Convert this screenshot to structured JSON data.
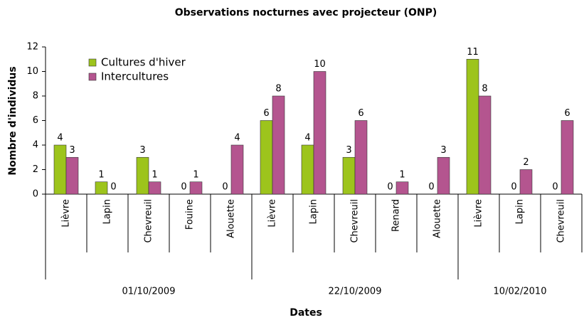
{
  "chart_data": {
    "type": "bar",
    "title": "Observations nocturnes avec projecteur (ONP)",
    "x_label": "Dates",
    "y_label": "Nombre d'individus",
    "categories": [
      "Lièvre",
      "Lapin",
      "Chevreuil",
      "Fouine",
      "Alouette",
      "Lièvre",
      "Lapin",
      "Chevreuil",
      "Renard",
      "Alouette",
      "Lièvre",
      "Lapin",
      "Chevreuil"
    ],
    "groups": [
      {
        "name": "01/10/2009",
        "span": 5
      },
      {
        "name": "22/10/2009",
        "span": 5
      },
      {
        "name": "10/02/2010",
        "span": 3
      }
    ],
    "series": [
      {
        "name": "Cultures d'hiver",
        "color": "#9dc41c",
        "values": [
          4,
          1,
          3,
          0,
          0,
          6,
          4,
          3,
          0,
          0,
          11,
          0,
          0
        ]
      },
      {
        "name": "Intercultures",
        "color": "#b4558f",
        "values": [
          3,
          0,
          1,
          1,
          4,
          8,
          10,
          6,
          1,
          3,
          8,
          2,
          6
        ]
      }
    ],
    "ylim": [
      0,
      12
    ],
    "yticks": [
      0,
      2,
      4,
      6,
      8,
      10,
      12
    ],
    "legend": "upper left"
  }
}
